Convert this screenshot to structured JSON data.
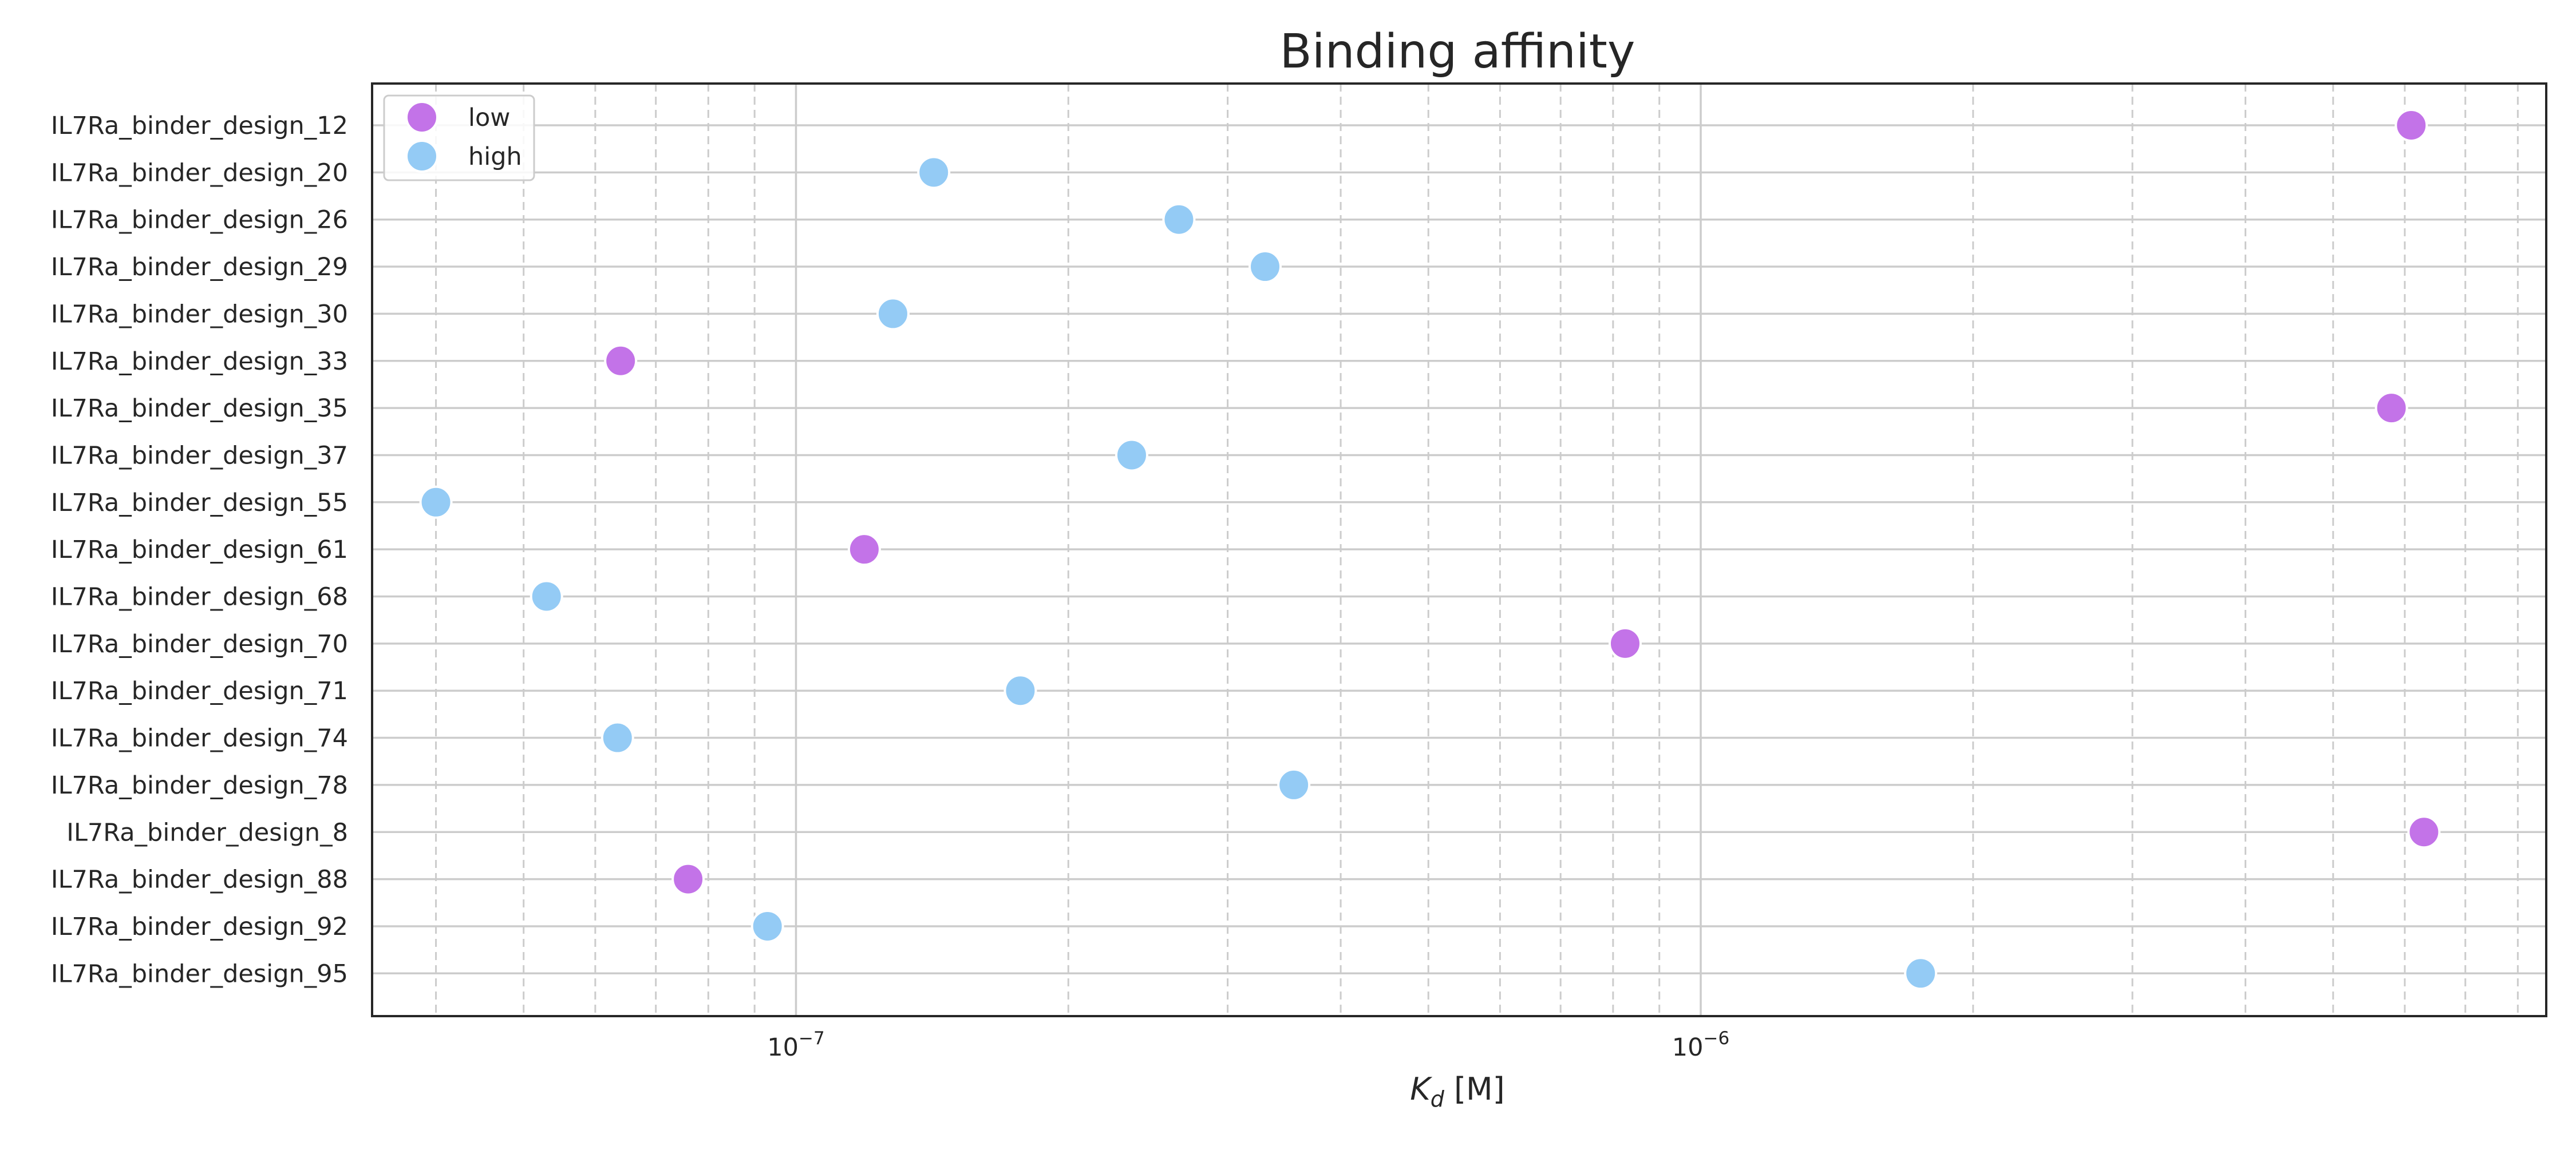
{
  "chart_data": {
    "type": "scatter",
    "title": "Binding affinity",
    "xlabel": "K_d [M]",
    "xscale": "log",
    "xlim": [
      3.4e-08,
      8.6e-06
    ],
    "xticks": [
      {
        "value": 1e-07,
        "base": "10",
        "exp": "−7"
      },
      {
        "value": 1e-06,
        "base": "10",
        "exp": "−6"
      }
    ],
    "grid": true,
    "legend": {
      "position": "top-left",
      "entries": [
        {
          "label": "low",
          "color": "#c373e8"
        },
        {
          "label": "high",
          "color": "#94cbf5"
        }
      ]
    },
    "categories": [
      "IL7Ra_binder_design_12",
      "IL7Ra_binder_design_20",
      "IL7Ra_binder_design_26",
      "IL7Ra_binder_design_29",
      "IL7Ra_binder_design_30",
      "IL7Ra_binder_design_33",
      "IL7Ra_binder_design_35",
      "IL7Ra_binder_design_37",
      "IL7Ra_binder_design_55",
      "IL7Ra_binder_design_61",
      "IL7Ra_binder_design_68",
      "IL7Ra_binder_design_70",
      "IL7Ra_binder_design_71",
      "IL7Ra_binder_design_74",
      "IL7Ra_binder_design_78",
      "IL7Ra_binder_design_8",
      "IL7Ra_binder_design_88",
      "IL7Ra_binder_design_92",
      "IL7Ra_binder_design_95"
    ],
    "points": [
      {
        "category": "IL7Ra_binder_design_12",
        "value": 6.1e-06,
        "group": "low"
      },
      {
        "category": "IL7Ra_binder_design_20",
        "value": 1.42e-07,
        "group": "high"
      },
      {
        "category": "IL7Ra_binder_design_26",
        "value": 2.65e-07,
        "group": "high"
      },
      {
        "category": "IL7Ra_binder_design_29",
        "value": 3.3e-07,
        "group": "high"
      },
      {
        "category": "IL7Ra_binder_design_30",
        "value": 1.28e-07,
        "group": "high"
      },
      {
        "category": "IL7Ra_binder_design_33",
        "value": 6.4e-08,
        "group": "low"
      },
      {
        "category": "IL7Ra_binder_design_35",
        "value": 5.8e-06,
        "group": "low"
      },
      {
        "category": "IL7Ra_binder_design_37",
        "value": 2.35e-07,
        "group": "high"
      },
      {
        "category": "IL7Ra_binder_design_55",
        "value": 4e-08,
        "group": "high"
      },
      {
        "category": "IL7Ra_binder_design_61",
        "value": 1.19e-07,
        "group": "low"
      },
      {
        "category": "IL7Ra_binder_design_68",
        "value": 5.3e-08,
        "group": "high"
      },
      {
        "category": "IL7Ra_binder_design_70",
        "value": 8.25e-07,
        "group": "low"
      },
      {
        "category": "IL7Ra_binder_design_71",
        "value": 1.77e-07,
        "group": "high"
      },
      {
        "category": "IL7Ra_binder_design_74",
        "value": 6.35e-08,
        "group": "high"
      },
      {
        "category": "IL7Ra_binder_design_78",
        "value": 3.55e-07,
        "group": "high"
      },
      {
        "category": "IL7Ra_binder_design_8",
        "value": 6.3e-06,
        "group": "low"
      },
      {
        "category": "IL7Ra_binder_design_88",
        "value": 7.6e-08,
        "group": "low"
      },
      {
        "category": "IL7Ra_binder_design_92",
        "value": 9.3e-08,
        "group": "high"
      },
      {
        "category": "IL7Ra_binder_design_95",
        "value": 1.75e-06,
        "group": "high"
      }
    ]
  }
}
